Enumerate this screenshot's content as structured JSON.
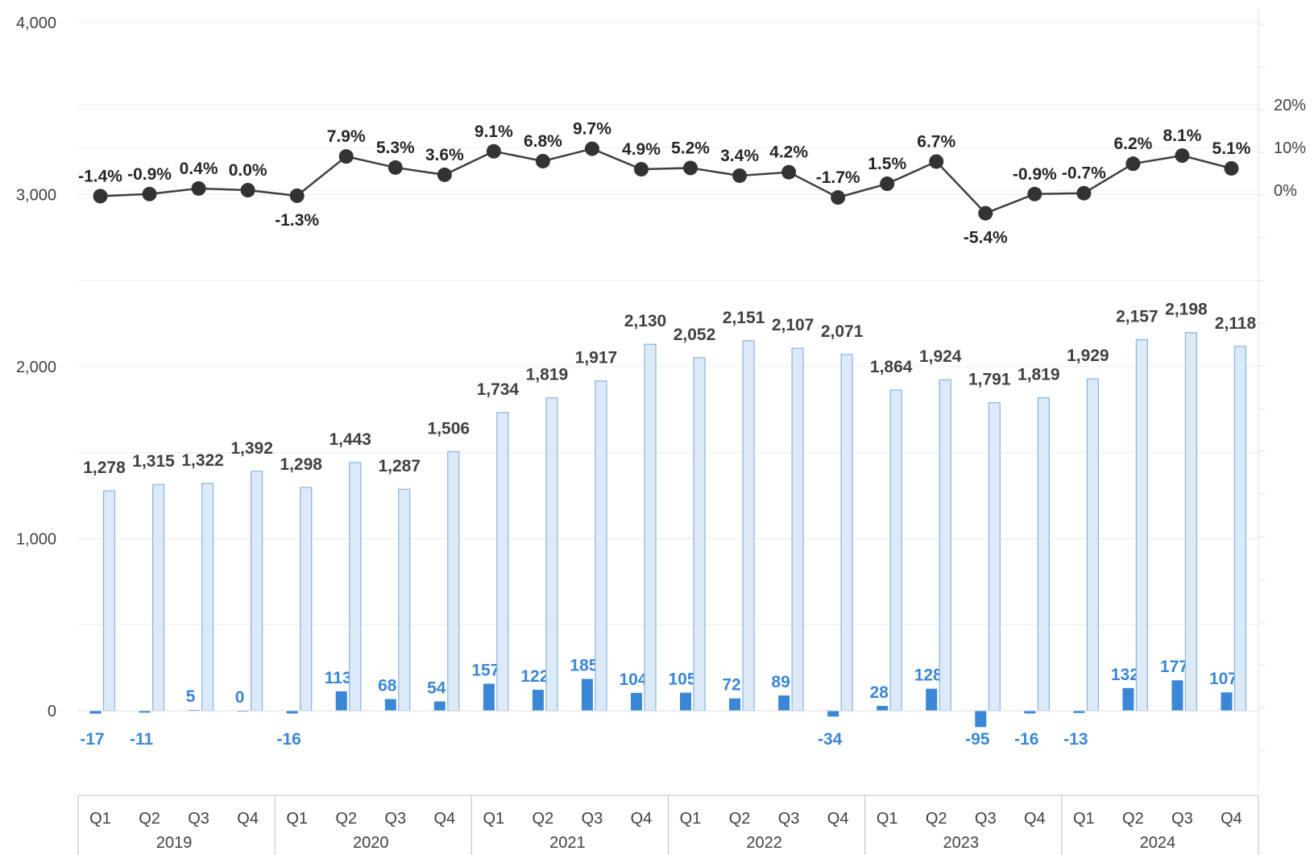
{
  "chart_data": {
    "type": "bar",
    "categories": [
      "Q1",
      "Q2",
      "Q3",
      "Q4",
      "Q1",
      "Q2",
      "Q3",
      "Q4",
      "Q1",
      "Q2",
      "Q3",
      "Q4",
      "Q1",
      "Q2",
      "Q3",
      "Q4",
      "Q1",
      "Q2",
      "Q3",
      "Q4",
      "Q1",
      "Q2",
      "Q3",
      "Q4"
    ],
    "years": [
      "2019",
      "2020",
      "2021",
      "2022",
      "2023",
      "2024"
    ],
    "quarters_per_year": 4,
    "series": [
      {
        "kind": "bar",
        "axis": "left",
        "values": [
          -17,
          -11,
          5,
          0,
          -16,
          113,
          68,
          54,
          157,
          122,
          185,
          104,
          105,
          72,
          89,
          -34,
          28,
          128,
          -95,
          -16,
          -13,
          132,
          177,
          107
        ],
        "labels": [
          "-17",
          "-11",
          "5",
          "0",
          "-16",
          "113",
          "68",
          "54",
          "157",
          "122",
          "185",
          "104",
          "105",
          "72",
          "89",
          "-34",
          "28",
          "128",
          "-95",
          "-16",
          "-13",
          "132",
          "177",
          "107"
        ]
      },
      {
        "kind": "bar",
        "axis": "left",
        "values": [
          1278,
          1315,
          1322,
          1392,
          1298,
          1443,
          1287,
          1506,
          1734,
          1819,
          1917,
          2130,
          2052,
          2151,
          2107,
          2071,
          1864,
          1924,
          1791,
          1819,
          1929,
          2157,
          2198,
          2118
        ],
        "labels": [
          "1,278",
          "1,315",
          "1,322",
          "1,392",
          "1,298",
          "1,443",
          "1,287",
          "1,506",
          "1,734",
          "1,819",
          "1,917",
          "2,130",
          "2,052",
          "2,151",
          "2,107",
          "2,071",
          "1,864",
          "1,924",
          "1,791",
          "1,819",
          "1,929",
          "2,157",
          "2,198",
          "2,118"
        ]
      },
      {
        "kind": "line",
        "axis": "right",
        "values": [
          -1.4,
          -0.9,
          0.4,
          0.0,
          -1.3,
          7.9,
          5.3,
          3.6,
          9.1,
          6.8,
          9.7,
          4.9,
          5.2,
          3.4,
          4.2,
          -1.7,
          1.5,
          6.7,
          -5.4,
          -0.9,
          -0.7,
          6.2,
          8.1,
          5.1
        ],
        "labels": [
          "-1.4%",
          "-0.9%",
          "0.4%",
          "0.0%",
          "-1.3%",
          "7.9%",
          "5.3%",
          "3.6%",
          "9.1%",
          "6.8%",
          "9.7%",
          "4.9%",
          "5.2%",
          "3.4%",
          "4.2%",
          "-1.7%",
          "1.5%",
          "6.7%",
          "-5.4%",
          "-0.9%",
          "-0.7%",
          "6.2%",
          "8.1%",
          "5.1%"
        ]
      }
    ],
    "left_axis": {
      "ticks": [
        0,
        1000,
        2000,
        3000,
        4000
      ],
      "tick_labels": [
        "0",
        "1,000",
        "2,000",
        "3,000",
        "4,000"
      ]
    },
    "right_axis": {
      "ticks": [
        0,
        10,
        20
      ],
      "tick_labels": [
        "0%",
        "10%",
        "20%"
      ]
    },
    "grid": true,
    "colors": {
      "change_bar": "#3a87d6",
      "total_bar_fill": "#dce9f7",
      "total_bar_stroke": "#8ab4de",
      "growth_line": "#404040",
      "growth_marker": "#333333",
      "change_label": "#3a87d6",
      "total_label": "#404040",
      "grid": "#ececec"
    }
  }
}
